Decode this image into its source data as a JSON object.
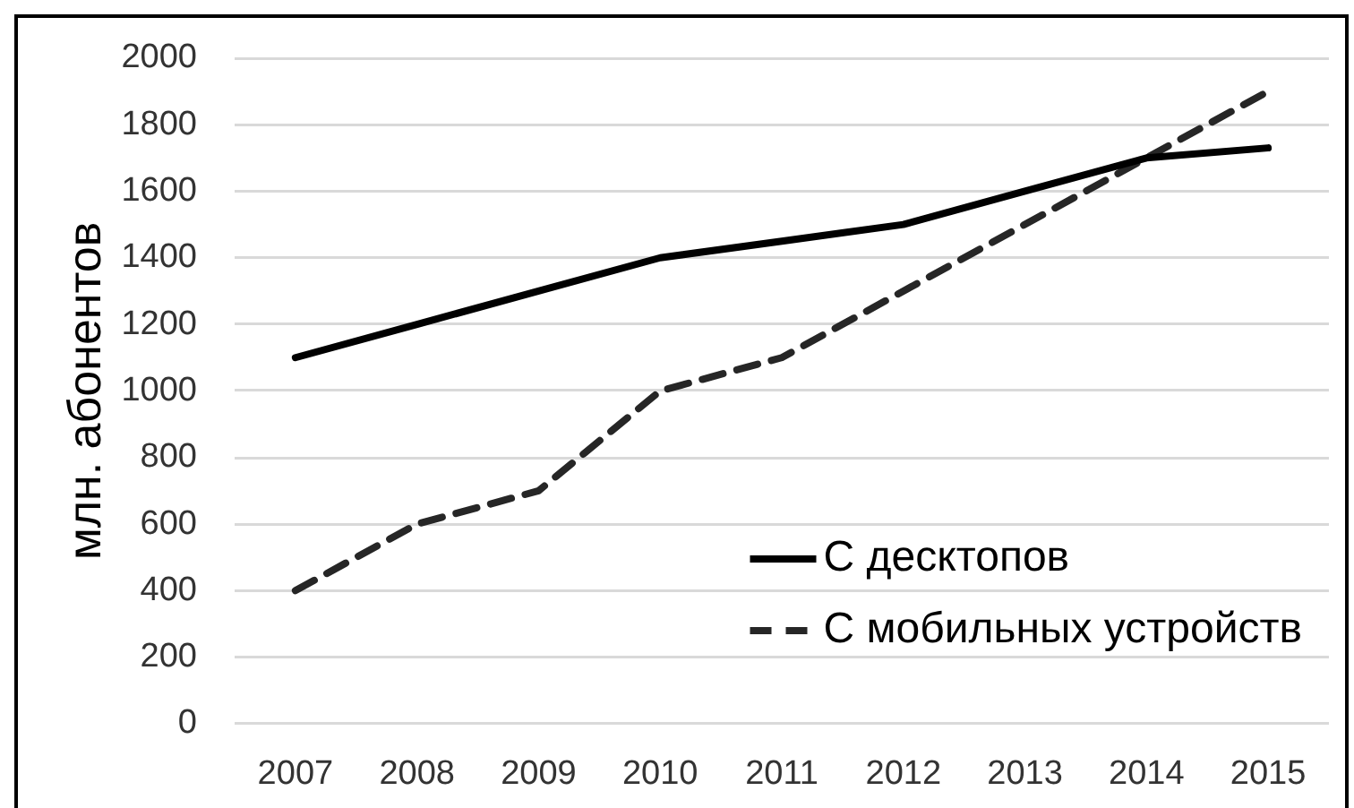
{
  "chart_data": {
    "type": "line",
    "categories": [
      "2007",
      "2008",
      "2009",
      "2010",
      "2011",
      "2012",
      "2013",
      "2014",
      "2015"
    ],
    "ylabel": "млн. абонентов",
    "ylim": [
      0,
      2000
    ],
    "yticks": [
      0,
      200,
      400,
      600,
      800,
      1000,
      1200,
      1400,
      1600,
      1800,
      2000
    ],
    "grid": "y",
    "legend": "bottom right",
    "marker": "none",
    "series": [
      {
        "name": "С десктопов",
        "color": "#000000",
        "line_style": "solid",
        "values": [
          1100,
          1200,
          1300,
          1400,
          1450,
          1500,
          1600,
          1700,
          1730
        ]
      },
      {
        "name": "С мобильных устройств",
        "color": "#262626",
        "line_style": "dashed",
        "values": [
          400,
          600,
          700,
          1000,
          1100,
          1300,
          1500,
          1700,
          1900
        ]
      }
    ]
  }
}
